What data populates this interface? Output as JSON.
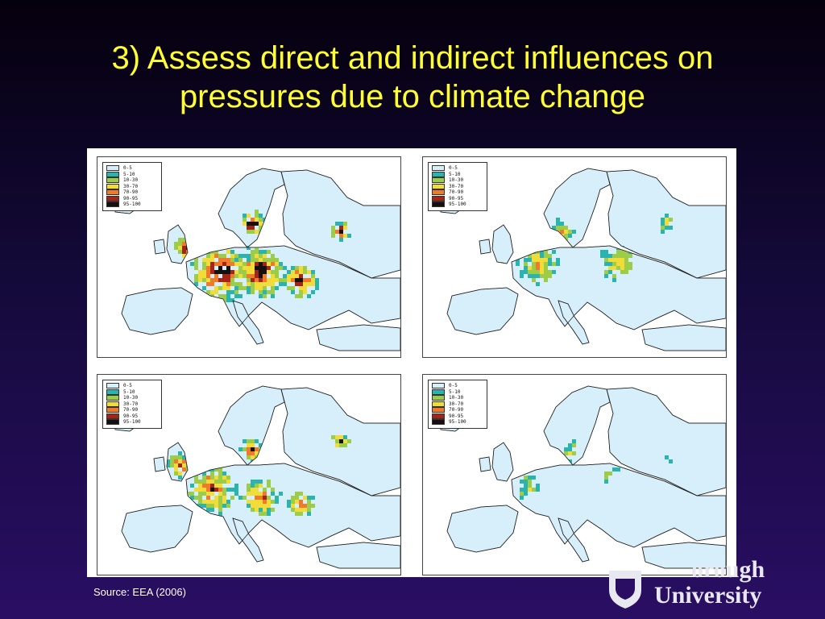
{
  "slide": {
    "title_line1": "3) Assess direct and indirect influences on",
    "title_line2": "pressures due to climate change",
    "source": "Source:  EEA (2006)"
  },
  "legend": {
    "classes": [
      {
        "label": "0-5",
        "color": "#d6effa"
      },
      {
        "label": "5-10",
        "color": "#2bb3b0"
      },
      {
        "label": "10-30",
        "color": "#9ccc48"
      },
      {
        "label": "30-70",
        "color": "#f2dc3a"
      },
      {
        "label": "70-90",
        "color": "#f07a2a"
      },
      {
        "label": "90-95",
        "color": "#a3251a"
      },
      {
        "label": "95-100",
        "color": "#141010"
      }
    ]
  },
  "maps": [
    {
      "intensity": "very-high"
    },
    {
      "intensity": "medium"
    },
    {
      "intensity": "high"
    },
    {
      "intensity": "low"
    }
  ],
  "logo": {
    "line1": "orough",
    "line2": "University",
    "icon": "shield-icon"
  },
  "colors": {
    "title": "#ffff33",
    "background_top": "#05000d",
    "background_bottom": "#2a0e63",
    "sea": "#ffffff",
    "land_low": "#d6effa"
  }
}
